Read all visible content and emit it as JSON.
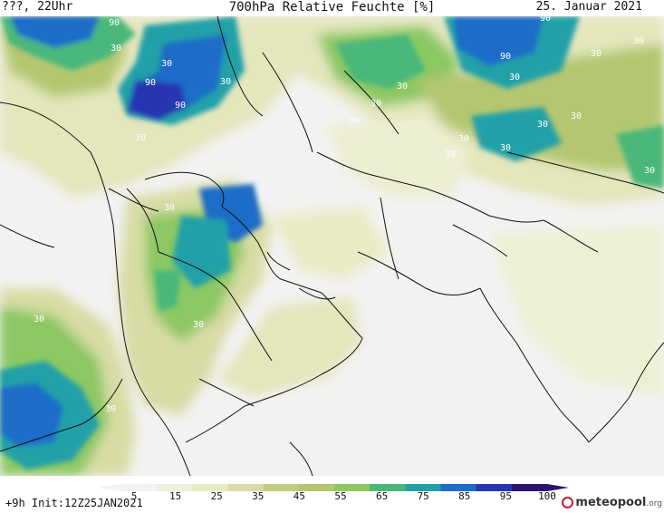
{
  "header": {
    "left": "???, 22Uhr",
    "center": "700hPa Relative Feuchte [%]",
    "right": "25. Januar 2021"
  },
  "footer": {
    "run_label": "+9h  Init:12Z25JAN2021",
    "logo_main": "meteopool",
    "logo_suffix": ".org"
  },
  "legend": {
    "ticks": [
      "5",
      "15",
      "25",
      "35",
      "45",
      "55",
      "65",
      "75",
      "85",
      "95",
      "100"
    ],
    "colors": [
      "#f2f2f2",
      "#f0f0dc",
      "#e9ebc4",
      "#d8dca4",
      "#c4cc84",
      "#b4c770",
      "#8cc864",
      "#48b87a",
      "#22a0a8",
      "#1c6cc8",
      "#2834b0",
      "#2a1470"
    ]
  },
  "contour_labels": [
    {
      "text": "90"
    },
    {
      "text": "30"
    },
    {
      "text": "30"
    },
    {
      "text": "90"
    },
    {
      "text": "90"
    },
    {
      "text": "30"
    },
    {
      "text": "30"
    },
    {
      "text": "30"
    },
    {
      "text": "30"
    },
    {
      "text": "30"
    },
    {
      "text": "30"
    },
    {
      "text": "30"
    },
    {
      "text": "30"
    },
    {
      "text": "30"
    },
    {
      "text": "90"
    },
    {
      "text": "90"
    },
    {
      "text": "30"
    },
    {
      "text": "30"
    },
    {
      "text": "30"
    },
    {
      "text": "30"
    },
    {
      "text": "30"
    },
    {
      "text": "30"
    },
    {
      "text": "30"
    },
    {
      "text": "30"
    },
    {
      "text": "30"
    }
  ]
}
